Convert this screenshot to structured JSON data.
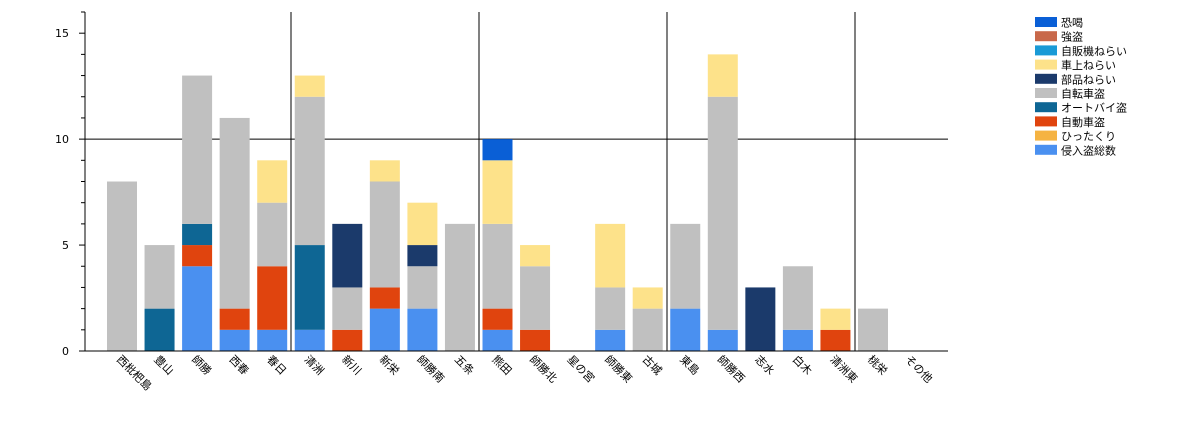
{
  "chart_data": {
    "type": "bar",
    "stacked": true,
    "ylim": [
      0,
      16
    ],
    "yticks": [
      0,
      5,
      10,
      15
    ],
    "grid": "y at 10, vertical lines every 5 categories",
    "legend_position": "top-right",
    "categories": [
      "西枇杷島",
      "豊山",
      "師勝",
      "西春",
      "春日",
      "清洲",
      "新川",
      "新栄",
      "師勝南",
      "五条",
      "熊田",
      "師勝北",
      "星の宮",
      "師勝東",
      "古城",
      "東島",
      "師勝西",
      "志水",
      "白木",
      "清洲東",
      "桃栄",
      "その他"
    ],
    "series": [
      {
        "name": "侵入盗総数",
        "color": "#4a90f0",
        "values": [
          0,
          0,
          4,
          1,
          1,
          1,
          0,
          2,
          2,
          0,
          1,
          0,
          0,
          1,
          0,
          2,
          1,
          0,
          1,
          0,
          0,
          0
        ]
      },
      {
        "name": "ひったくり",
        "color": "#f5b342",
        "values": [
          0,
          0,
          0,
          0,
          0,
          0,
          0,
          0,
          0,
          0,
          0,
          0,
          0,
          0,
          0,
          0,
          0,
          0,
          0,
          0,
          0,
          0
        ]
      },
      {
        "name": "自動車盗",
        "color": "#e0440e",
        "values": [
          0,
          0,
          1,
          1,
          3,
          0,
          1,
          1,
          0,
          0,
          1,
          1,
          0,
          0,
          0,
          0,
          0,
          0,
          0,
          1,
          0,
          0
        ]
      },
      {
        "name": "オートバイ盗",
        "color": "#0e6694",
        "values": [
          0,
          2,
          1,
          0,
          0,
          4,
          0,
          0,
          0,
          0,
          0,
          0,
          0,
          0,
          0,
          0,
          0,
          0,
          0,
          0,
          0,
          0
        ]
      },
      {
        "name": "自転車盗",
        "color": "#c0c0c0",
        "values": [
          8,
          3,
          7,
          9,
          3,
          7,
          2,
          5,
          2,
          6,
          4,
          3,
          0,
          2,
          2,
          4,
          11,
          0,
          3,
          0,
          2,
          0
        ]
      },
      {
        "name": "部品ねらい",
        "color": "#1b3a6b",
        "values": [
          0,
          0,
          0,
          0,
          0,
          0,
          3,
          0,
          1,
          0,
          0,
          0,
          0,
          0,
          0,
          0,
          0,
          3,
          0,
          0,
          0,
          0
        ]
      },
      {
        "name": "車上ねらい",
        "color": "#fde28a",
        "values": [
          0,
          0,
          0,
          0,
          2,
          1,
          0,
          1,
          2,
          0,
          3,
          1,
          0,
          3,
          1,
          0,
          2,
          0,
          0,
          1,
          0,
          0
        ]
      },
      {
        "name": "自販機ねらい",
        "color": "#1a9ad6",
        "values": [
          0,
          0,
          0,
          0,
          0,
          0,
          0,
          0,
          0,
          0,
          0,
          0,
          0,
          0,
          0,
          0,
          0,
          0,
          0,
          0,
          0,
          0
        ]
      },
      {
        "name": "強盗",
        "color": "#c8684a",
        "values": [
          0,
          0,
          0,
          0,
          0,
          0,
          0,
          0,
          0,
          0,
          0,
          0,
          0,
          0,
          0,
          0,
          0,
          0,
          0,
          0,
          0,
          0
        ]
      },
      {
        "name": "恐喝",
        "color": "#0a5fd6",
        "values": [
          0,
          0,
          0,
          0,
          0,
          0,
          0,
          0,
          0,
          0,
          1,
          0,
          0,
          0,
          0,
          0,
          0,
          0,
          0,
          0,
          0,
          0
        ]
      }
    ]
  }
}
